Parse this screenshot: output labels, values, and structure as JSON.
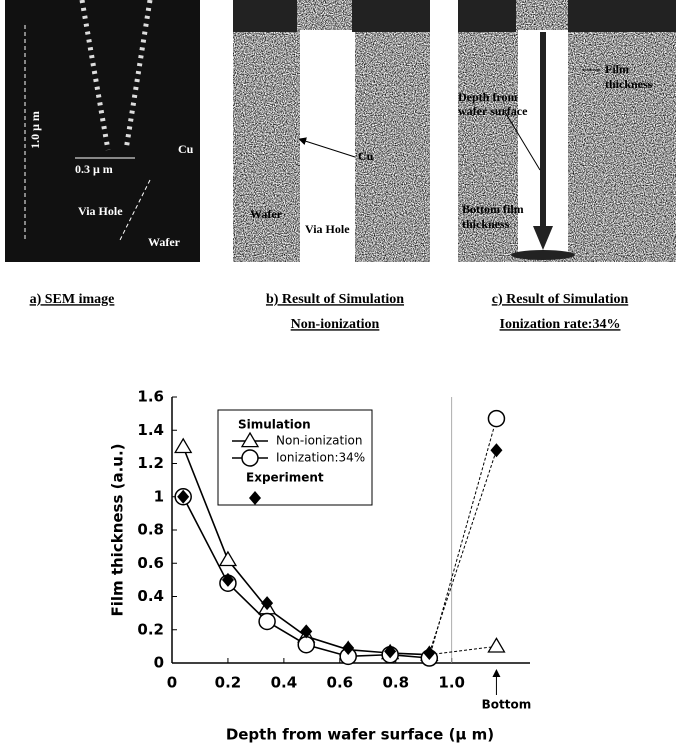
{
  "panels": [
    {
      "labels": [
        "Cu",
        "1.0 μ m",
        "0.3 μ m",
        "Via Hole",
        "Wafer"
      ],
      "caption": [
        "a) SEM image"
      ]
    },
    {
      "labels": [
        "Cu",
        "Wafer",
        "Via Hole"
      ],
      "caption": [
        "b) Result of Simulation",
        "Non-ionization"
      ]
    },
    {
      "labels": [
        "Depth from",
        "wafer surface",
        "Film",
        "thickness",
        "Bottom film",
        "thickness"
      ],
      "caption": [
        "c) Result of Simulation",
        "Ionization rate:34%"
      ]
    }
  ],
  "chart_data": {
    "type": "line",
    "x_label": "Depth from wafer surface (μ m)",
    "y_label": "Film thickness (a.u.)",
    "x": [
      0.04,
      0.2,
      0.34,
      0.48,
      0.63,
      0.78,
      0.92,
      1.16
    ],
    "series": [
      {
        "name": "Non-ionization",
        "group": "Simulation",
        "marker": "triangle",
        "line": true,
        "color": "#000",
        "values": [
          1.3,
          0.62,
          0.33,
          0.16,
          0.08,
          0.06,
          0.05,
          0.1
        ]
      },
      {
        "name": "Ionization:34%",
        "group": "Simulation",
        "marker": "circle",
        "line": true,
        "color": "#000",
        "values": [
          1.0,
          0.48,
          0.25,
          0.11,
          0.04,
          0.05,
          0.03,
          1.47
        ]
      },
      {
        "name": "Experiment",
        "marker": "diamond",
        "line": false,
        "color": "#000",
        "values": [
          1.0,
          0.5,
          0.36,
          0.19,
          0.09,
          0.07,
          0.06,
          1.28
        ]
      }
    ],
    "xlim": [
      0,
      1.28
    ],
    "ylim": [
      0,
      1.6
    ],
    "xticks": [
      0,
      0.2,
      0.4,
      0.6,
      0.8,
      {
        "value": 1,
        "label": "1.0"
      }
    ],
    "yticks": [
      0,
      0.2,
      0.4,
      0.6,
      0.8,
      1,
      1.2,
      1.4,
      1.6
    ],
    "annotations": [
      {
        "text": "Bottom",
        "x": 1.16
      }
    ]
  }
}
